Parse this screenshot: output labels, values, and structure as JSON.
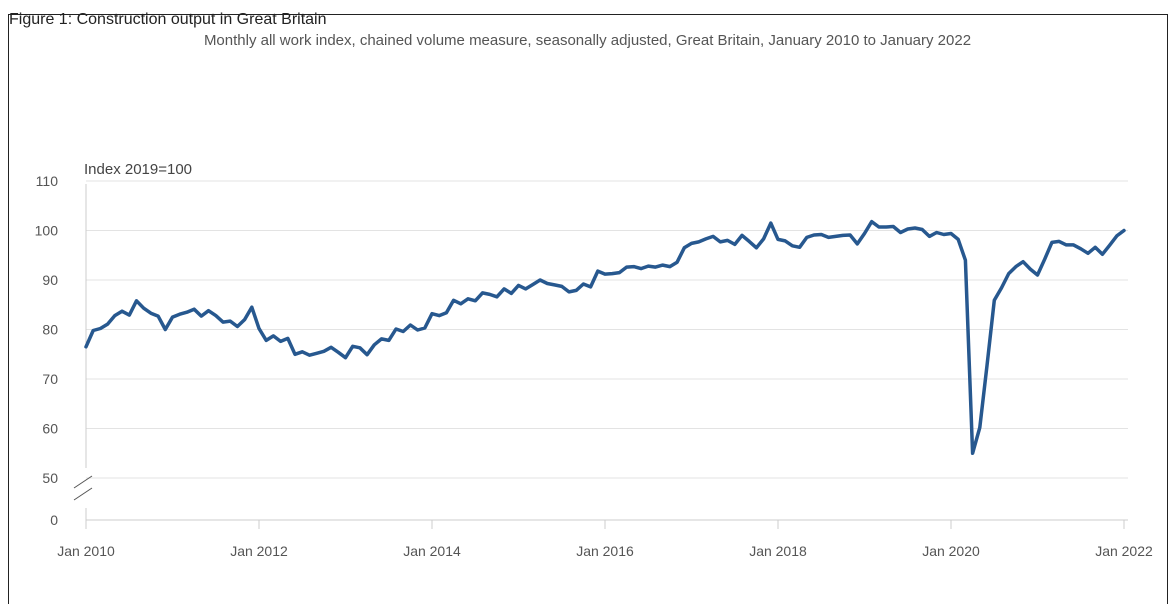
{
  "figure_caption": "Figure 1: Construction output in Great Britain",
  "chart_data": {
    "type": "line",
    "title": "Monthly all work index, chained volume measure, seasonally adjusted, Great Britain, January 2010 to January 2022",
    "ylabel": "Index 2019=100",
    "ylim": [
      0,
      110
    ],
    "y_ticks": [
      0,
      50,
      60,
      70,
      80,
      90,
      100,
      110
    ],
    "axis_break": "between 0 and 50",
    "x_ticks": [
      "Jan 2010",
      "Jan 2012",
      "Jan 2014",
      "Jan 2016",
      "Jan 2018",
      "Jan 2020",
      "Jan 2022"
    ],
    "x_range": [
      "2010-01",
      "2022-01"
    ],
    "grid": "horizontal",
    "series": [
      {
        "color": "#27588f",
        "start": "2010-01",
        "frequency": "monthly",
        "values": [
          76.5,
          79.8,
          80.2,
          81.1,
          82.8,
          83.7,
          82.9,
          85.8,
          84.3,
          83.3,
          82.7,
          80.0,
          82.5,
          83.1,
          83.5,
          84.1,
          82.7,
          83.8,
          82.8,
          81.5,
          81.7,
          80.6,
          82.0,
          84.5,
          80.2,
          77.8,
          78.7,
          77.6,
          78.2,
          75.0,
          75.5,
          74.8,
          75.2,
          75.6,
          76.4,
          75.4,
          74.3,
          76.6,
          76.3,
          74.9,
          76.9,
          78.1,
          77.8,
          80.1,
          79.6,
          80.9,
          79.9,
          80.3,
          83.2,
          82.8,
          83.4,
          85.9,
          85.2,
          86.2,
          85.8,
          87.4,
          87.1,
          86.6,
          88.2,
          87.3,
          88.9,
          88.2,
          89.1,
          90.0,
          89.3,
          89.0,
          88.7,
          87.6,
          87.9,
          89.2,
          88.6,
          91.8,
          91.2,
          91.3,
          91.5,
          92.6,
          92.7,
          92.3,
          92.8,
          92.6,
          93.0,
          92.7,
          93.6,
          96.5,
          97.4,
          97.7,
          98.3,
          98.8,
          97.7,
          98.0,
          97.2,
          99.0,
          97.8,
          96.5,
          98.3,
          101.5,
          98.2,
          97.9,
          96.9,
          96.6,
          98.6,
          99.1,
          99.2,
          98.6,
          98.8,
          99.0,
          99.1,
          97.3,
          99.4,
          101.8,
          100.7,
          100.7,
          100.8,
          99.6,
          100.3,
          100.5,
          100.2,
          98.8,
          99.6,
          99.2,
          99.4,
          98.2,
          94.0,
          55.0,
          60.2,
          72.7,
          85.9,
          88.4,
          91.3,
          92.7,
          93.7,
          92.2,
          91.0,
          94.2,
          97.6,
          97.8,
          97.1,
          97.1,
          96.3,
          95.4,
          96.6,
          95.2,
          97.0,
          98.9,
          100.0
        ]
      }
    ]
  }
}
